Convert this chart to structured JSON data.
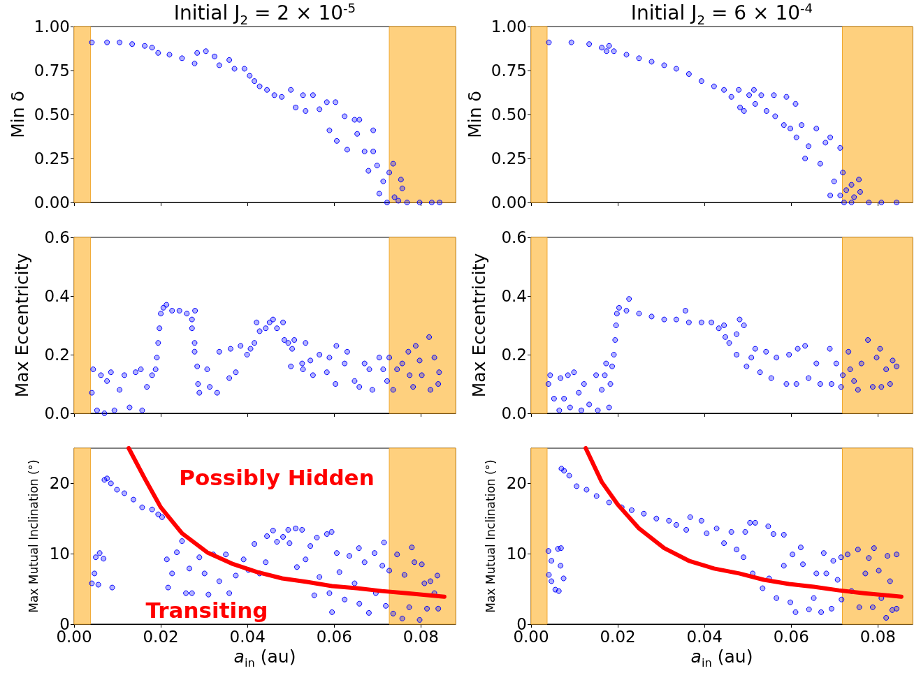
{
  "chart_data": [
    {
      "type": "scatter",
      "title": "Initial J$_{2}$ = 2 × 10$^{-5}$",
      "ylabel": "Min δ",
      "marker": "circle",
      "tick_labels": "y",
      "xlim": [
        0,
        0.088
      ],
      "xticks": [
        {
          "value": 0,
          "label": null
        },
        {
          "value": 0.02,
          "label": null
        },
        {
          "value": 0.04,
          "label": null
        },
        {
          "value": 0.06,
          "label": null
        },
        {
          "value": 0.08,
          "label": null
        }
      ],
      "ylim": [
        0,
        1
      ],
      "yticks": [
        {
          "value": 0,
          "label": "0.00"
        },
        {
          "value": 0.25,
          "label": "0.25"
        },
        {
          "value": 0.5,
          "label": "0.50"
        },
        {
          "value": 0.75,
          "label": "0.75"
        },
        {
          "value": 1,
          "label": "1.00"
        }
      ],
      "bands": [
        {
          "axis": "x",
          "from": 0,
          "to": 0.0038,
          "color": "#fed07e"
        },
        {
          "axis": "x",
          "from": 0.0727,
          "to": 0.088,
          "color": "#fed07e"
        }
      ],
      "series": [
        {
          "color": "#0000ff",
          "x": [
            0.0041,
            0.0076,
            0.0105,
            0.0134,
            0.0163,
            0.018,
            0.0194,
            0.022,
            0.0249,
            0.0278,
            0.0284,
            0.0304,
            0.0324,
            0.0335,
            0.0358,
            0.037,
            0.0393,
            0.0405,
            0.0416,
            0.0428,
            0.0445,
            0.0462,
            0.0479,
            0.05,
            0.0511,
            0.0528,
            0.0534,
            0.0551,
            0.0566,
            0.0583,
            0.0589,
            0.0603,
            0.0606,
            0.0624,
            0.063,
            0.0647,
            0.0653,
            0.0658,
            0.067,
            0.0679,
            0.069,
            0.069,
            0.0699,
            0.0704,
            0.0713,
            0.0722,
            0.0727,
            0.0736,
            0.0739,
            0.0748,
            0.0754,
            0.0757,
            0.0768,
            0.0797,
            0.0825,
            0.0843
          ],
          "values": [
            0.91,
            0.91,
            0.91,
            0.9,
            0.89,
            0.88,
            0.85,
            0.84,
            0.82,
            0.79,
            0.85,
            0.86,
            0.83,
            0.78,
            0.81,
            0.76,
            0.76,
            0.72,
            0.69,
            0.66,
            0.64,
            0.61,
            0.6,
            0.64,
            0.54,
            0.61,
            0.52,
            0.61,
            0.53,
            0.57,
            0.41,
            0.57,
            0.35,
            0.49,
            0.3,
            0.47,
            0.39,
            0.47,
            0.29,
            0.18,
            0.41,
            0.29,
            0.21,
            0.05,
            0.12,
            0,
            0.17,
            0.22,
            0.03,
            0.01,
            0.13,
            0.08,
            0,
            0,
            0,
            0
          ]
        }
      ]
    },
    {
      "type": "scatter",
      "title": "Initial J$_{2}$ = 6 × 10$^{-4}$",
      "ylabel": "Min δ",
      "marker": "circle",
      "tick_labels": "y",
      "xlim": [
        0,
        0.088
      ],
      "xticks": [
        {
          "value": 0,
          "label": null
        },
        {
          "value": 0.02,
          "label": null
        },
        {
          "value": 0.04,
          "label": null
        },
        {
          "value": 0.06,
          "label": null
        },
        {
          "value": 0.08,
          "label": null
        }
      ],
      "ylim": [
        0,
        1
      ],
      "yticks": [
        {
          "value": 0,
          "label": "0.00"
        },
        {
          "value": 0.25,
          "label": "0.25"
        },
        {
          "value": 0.5,
          "label": "0.50"
        },
        {
          "value": 0.75,
          "label": "0.75"
        },
        {
          "value": 1,
          "label": "1.00"
        }
      ],
      "bands": [
        {
          "axis": "x",
          "from": 0,
          "to": 0.0037,
          "color": "#fed07e"
        },
        {
          "axis": "x",
          "from": 0.0718,
          "to": 0.088,
          "color": "#fed07e"
        }
      ],
      "series": [
        {
          "color": "#0000ff",
          "x": [
            0.0041,
            0.0093,
            0.0134,
            0.0163,
            0.018,
            0.0174,
            0.0191,
            0.022,
            0.0249,
            0.0278,
            0.0307,
            0.0335,
            0.0364,
            0.0393,
            0.0422,
            0.0445,
            0.0462,
            0.0479,
            0.0482,
            0.0491,
            0.0503,
            0.0514,
            0.0517,
            0.0531,
            0.0543,
            0.056,
            0.0563,
            0.0583,
            0.0589,
            0.0598,
            0.061,
            0.0612,
            0.0624,
            0.0632,
            0.064,
            0.0658,
            0.0667,
            0.0679,
            0.069,
            0.069,
            0.0699,
            0.0713,
            0.0713,
            0.0719,
            0.0727,
            0.0739,
            0.0745,
            0.0756,
            0.0759,
            0.0722,
            0.0739,
            0.0779,
            0.0808,
            0.0843
          ],
          "values": [
            0.91,
            0.91,
            0.9,
            0.88,
            0.89,
            0.86,
            0.86,
            0.84,
            0.82,
            0.8,
            0.78,
            0.76,
            0.73,
            0.69,
            0.66,
            0.64,
            0.6,
            0.64,
            0.54,
            0.52,
            0.61,
            0.64,
            0.56,
            0.61,
            0.52,
            0.61,
            0.49,
            0.44,
            0.6,
            0.42,
            0.56,
            0.37,
            0.44,
            0.25,
            0.32,
            0.42,
            0.22,
            0.34,
            0.04,
            0.37,
            0.12,
            0.31,
            0.04,
            0.17,
            0.07,
            0.1,
            0.03,
            0.13,
            0.06,
            0,
            0,
            0,
            0,
            0
          ]
        }
      ]
    },
    {
      "type": "scatter",
      "ylabel": "Max Eccentricity",
      "marker": "circle",
      "tick_labels": "y",
      "xlim": [
        0,
        0.088
      ],
      "xticks": [
        {
          "value": 0,
          "label": null
        },
        {
          "value": 0.02,
          "label": null
        },
        {
          "value": 0.04,
          "label": null
        },
        {
          "value": 0.06,
          "label": null
        },
        {
          "value": 0.08,
          "label": null
        }
      ],
      "ylim": [
        0,
        0.6
      ],
      "yticks": [
        {
          "value": 0,
          "label": "0.0"
        },
        0.2,
        0.4,
        0.6
      ],
      "bands": [
        {
          "axis": "x",
          "from": 0,
          "to": 0.0038,
          "color": "#fed07e"
        },
        {
          "axis": "x",
          "from": 0.0727,
          "to": 0.088,
          "color": "#fed07e"
        }
      ],
      "series": [
        {
          "color": "#0000ff",
          "x": [
            0.0041,
            0.0044,
            0.0053,
            0.0062,
            0.007,
            0.0076,
            0.0085,
            0.0093,
            0.0105,
            0.0116,
            0.0128,
            0.0142,
            0.0154,
            0.0157,
            0.0168,
            0.018,
            0.0188,
            0.0191,
            0.0194,
            0.0197,
            0.02,
            0.0206,
            0.0213,
            0.0226,
            0.0243,
            0.026,
            0.0272,
            0.0279,
            0.0272,
            0.0278,
            0.0278,
            0.0284,
            0.0286,
            0.0289,
            0.0307,
            0.0313,
            0.033,
            0.0335,
            0.0358,
            0.0361,
            0.0373,
            0.0384,
            0.0399,
            0.0407,
            0.0416,
            0.0421,
            0.0428,
            0.0442,
            0.0451,
            0.0459,
            0.0468,
            0.0482,
            0.0485,
            0.0494,
            0.0503,
            0.0508,
            0.05,
            0.0526,
            0.0528,
            0.0534,
            0.0545,
            0.0551,
            0.0566,
            0.0583,
            0.0589,
            0.0605,
            0.0603,
            0.0624,
            0.063,
            0.0647,
            0.0658,
            0.067,
            0.0681,
            0.0688,
            0.0704,
            0.0713,
            0.0722,
            0.0727,
            0.0736,
            0.0745,
            0.0757,
            0.0771,
            0.0774,
            0.0782,
            0.0788,
            0.0797,
            0.0802,
            0.0819,
            0.0822,
            0.0831,
            0.084,
            0.0842
          ],
          "values": [
            0.07,
            0.15,
            0.01,
            0.13,
            0,
            0.11,
            0.14,
            0.01,
            0.08,
            0.13,
            0.02,
            0.14,
            0.15,
            0.01,
            0.09,
            0.13,
            0.15,
            0.19,
            0.24,
            0.29,
            0.34,
            0.36,
            0.37,
            0.35,
            0.35,
            0.34,
            0.32,
            0.35,
            0.29,
            0.24,
            0.21,
            0.16,
            0.1,
            0.07,
            0.15,
            0.09,
            0.07,
            0.21,
            0.12,
            0.22,
            0.14,
            0.23,
            0.2,
            0.22,
            0.24,
            0.31,
            0.28,
            0.29,
            0.31,
            0.32,
            0.29,
            0.31,
            0.25,
            0.24,
            0.22,
            0.25,
            0.16,
            0.17,
            0.15,
            0.24,
            0.18,
            0.13,
            0.2,
            0.14,
            0.19,
            0.23,
            0.1,
            0.17,
            0.21,
            0.11,
            0.09,
            0.17,
            0.15,
            0.08,
            0.19,
            0.15,
            0.11,
            0.19,
            0.08,
            0.15,
            0.17,
            0.21,
            0.13,
            0.09,
            0.23,
            0.18,
            0.13,
            0.26,
            0.08,
            0.19,
            0.1,
            0.14
          ]
        }
      ]
    },
    {
      "type": "scatter",
      "ylabel": "Max Eccentricity",
      "marker": "circle",
      "tick_labels": "y",
      "xlim": [
        0,
        0.088
      ],
      "xticks": [
        {
          "value": 0,
          "label": null
        },
        {
          "value": 0.02,
          "label": null
        },
        {
          "value": 0.04,
          "label": null
        },
        {
          "value": 0.06,
          "label": null
        },
        {
          "value": 0.08,
          "label": null
        }
      ],
      "ylim": [
        0,
        0.6
      ],
      "yticks": [
        {
          "value": 0,
          "label": "0.0"
        },
        0.2,
        0.4,
        0.6
      ],
      "bands": [
        {
          "axis": "x",
          "from": 0,
          "to": 0.0037,
          "color": "#fed07e"
        },
        {
          "axis": "x",
          "from": 0.0718,
          "to": 0.088,
          "color": "#fed07e"
        }
      ],
      "series": [
        {
          "color": "#0000ff",
          "x": [
            0.004,
            0.0044,
            0.0053,
            0.0065,
            0.0068,
            0.0076,
            0.0085,
            0.009,
            0.0099,
            0.011,
            0.0116,
            0.0122,
            0.0134,
            0.015,
            0.0154,
            0.0163,
            0.017,
            0.0173,
            0.018,
            0.0183,
            0.0187,
            0.0191,
            0.0194,
            0.0196,
            0.0198,
            0.0203,
            0.0226,
            0.022,
            0.0249,
            0.0278,
            0.0307,
            0.0335,
            0.0356,
            0.0364,
            0.0393,
            0.0416,
            0.0433,
            0.0445,
            0.0448,
            0.0457,
            0.0474,
            0.0481,
            0.0474,
            0.0491,
            0.0497,
            0.0508,
            0.0517,
            0.0528,
            0.0542,
            0.0554,
            0.0566,
            0.0589,
            0.0595,
            0.0612,
            0.0615,
            0.0632,
            0.064,
            0.0658,
            0.0667,
            0.0689,
            0.0693,
            0.0704,
            0.0715,
            0.0719,
            0.0732,
            0.0736,
            0.0745,
            0.0754,
            0.0762,
            0.0777,
            0.0788,
            0.0797,
            0.0805,
            0.0808,
            0.0819,
            0.0828,
            0.0834,
            0.0843
          ],
          "values": [
            0.1,
            0.13,
            0.05,
            0.01,
            0.12,
            0.05,
            0.13,
            0.02,
            0.14,
            0.07,
            0.01,
            0.1,
            0.03,
            0.13,
            0.01,
            0.08,
            0.13,
            0.17,
            0.02,
            0.1,
            0.16,
            0.2,
            0.25,
            0.3,
            0.34,
            0.36,
            0.39,
            0.35,
            0.34,
            0.33,
            0.32,
            0.32,
            0.35,
            0.31,
            0.31,
            0.31,
            0.29,
            0.3,
            0.26,
            0.24,
            0.27,
            0.32,
            0.2,
            0.3,
            0.16,
            0.19,
            0.22,
            0.14,
            0.21,
            0.12,
            0.19,
            0.1,
            0.2,
            0.1,
            0.22,
            0.23,
            0.12,
            0.17,
            0.1,
            0.22,
            0.1,
            0.17,
            0.09,
            0.13,
            0.21,
            0.15,
            0.11,
            0.08,
            0.17,
            0.25,
            0.09,
            0.19,
            0.22,
            0.09,
            0.15,
            0.1,
            0.18,
            0.16
          ]
        }
      ]
    },
    {
      "type": "scatter",
      "xlabel": "a$_{in}$ (au)",
      "ylabel": "Max Mutual Inclination (°)",
      "marker": "circle",
      "xlim": [
        0,
        0.088
      ],
      "xticks": [
        {
          "value": 0,
          "label": "0.00"
        },
        {
          "value": 0.02,
          "label": "0.02"
        },
        {
          "value": 0.04,
          "label": "0.04"
        },
        {
          "value": 0.06,
          "label": "0.06"
        },
        {
          "value": 0.08,
          "label": "0.08"
        }
      ],
      "ylim": [
        0,
        25
      ],
      "yticks": [
        0,
        10,
        20
      ],
      "bands": [
        {
          "axis": "x",
          "from": 0,
          "to": 0.0038,
          "color": "#fed07e"
        },
        {
          "axis": "x",
          "from": 0.0727,
          "to": 0.088,
          "color": "#fed07e"
        }
      ],
      "annotations": [
        "Possibly Hidden",
        "Transiting"
      ],
      "series": [
        {
          "color": "#0000ff",
          "x": [
            0.0041,
            0.0047,
            0.0056,
            0.005,
            0.0059,
            0.0068,
            0.0088,
            0.007,
            0.0076,
            0.0085,
            0.0099,
            0.0116,
            0.0137,
            0.0157,
            0.018,
            0.0194,
            0.0203,
            0.0214,
            0.0217,
            0.0226,
            0.0237,
            0.0249,
            0.0258,
            0.0266,
            0.0272,
            0.0289,
            0.0301,
            0.031,
            0.0321,
            0.0335,
            0.035,
            0.0358,
            0.0373,
            0.0391,
            0.0402,
            0.0416,
            0.0428,
            0.0442,
            0.0445,
            0.0459,
            0.0468,
            0.0482,
            0.0494,
            0.0497,
            0.0511,
            0.0514,
            0.0526,
            0.0534,
            0.0545,
            0.0554,
            0.056,
            0.0566,
            0.0583,
            0.0589,
            0.0594,
            0.0595,
            0.0606,
            0.0612,
            0.0624,
            0.0635,
            0.0647,
            0.0657,
            0.0658,
            0.067,
            0.068,
            0.0693,
            0.0696,
            0.0711,
            0.0715,
            0.0719,
            0.0727,
            0.0736,
            0.0745,
            0.0757,
            0.0762,
            0.0773,
            0.0779,
            0.0785,
            0.0797,
            0.0802,
            0.0808,
            0.0814,
            0.0822,
            0.0831,
            0.0838,
            0.084
          ],
          "values": [
            5.8,
            7.2,
            5.6,
            9.5,
            10.1,
            9.3,
            5.2,
            20.5,
            20.7,
            20.0,
            19.1,
            18.6,
            17.7,
            16.6,
            16.3,
            15.6,
            15.2,
            9.2,
            5.2,
            7.2,
            10.2,
            11.8,
            4.4,
            7.9,
            4.4,
            9.5,
            7.2,
            4.2,
            9.9,
            6.1,
            9.9,
            4.4,
            6.9,
            9.2,
            7.7,
            11.4,
            7.2,
            8.8,
            12.5,
            13.3,
            11.7,
            12.4,
            13.4,
            11.5,
            13.6,
            8.1,
            13.4,
            9.2,
            11.1,
            4.1,
            12.3,
            6.7,
            12.8,
            4.4,
            13.1,
            1.7,
            10.1,
            7.4,
            3.5,
            9.7,
            5.8,
            10.8,
            2.9,
            8.8,
            1.6,
            10.1,
            4.4,
            8.3,
            11.6,
            2.6,
            7.6,
            1.5,
            9.9,
            0.8,
            7.0,
            2.4,
            10.9,
            8.8,
            0.6,
            8.5,
            5.8,
            2.2,
            6.1,
            4.4,
            6.9,
            2.2
          ]
        },
        {
          "type": "line",
          "marker": "none",
          "color": "#ff0000",
          "x": [
            0.0126,
            0.0163,
            0.02,
            0.0249,
            0.0307,
            0.0364,
            0.0422,
            0.048,
            0.0537,
            0.0595,
            0.0652,
            0.071,
            0.0768,
            0.0854
          ],
          "values": [
            25,
            20.7,
            16.6,
            12.9,
            10.2,
            8.6,
            7.4,
            6.5,
            6.0,
            5.4,
            5.1,
            4.7,
            4.4,
            3.9
          ]
        }
      ]
    },
    {
      "type": "scatter",
      "xlabel": "a$_{in}$ (au)",
      "ylabel": "Max Mutual Inclination (°)",
      "marker": "circle",
      "xlim": [
        0,
        0.088
      ],
      "xticks": [
        {
          "value": 0,
          "label": "0.00"
        },
        {
          "value": 0.02,
          "label": "0.02"
        },
        {
          "value": 0.04,
          "label": "0.04"
        },
        {
          "value": 0.06,
          "label": "0.06"
        },
        {
          "value": 0.08,
          "label": "0.08"
        }
      ],
      "ylim": [
        0,
        25
      ],
      "yticks": [
        0,
        10,
        20
      ],
      "bands": [
        {
          "axis": "x",
          "from": 0,
          "to": 0.0037,
          "color": "#fed07e"
        },
        {
          "axis": "x",
          "from": 0.0718,
          "to": 0.088,
          "color": "#fed07e"
        }
      ],
      "series": [
        {
          "color": "#0000ff",
          "x": [
            0.004,
            0.0041,
            0.0047,
            0.0047,
            0.0056,
            0.0062,
            0.0064,
            0.0068,
            0.0069,
            0.0075,
            0.007,
            0.0076,
            0.0088,
            0.0105,
            0.0128,
            0.0151,
            0.018,
            0.0209,
            0.0232,
            0.026,
            0.0289,
            0.0318,
            0.0335,
            0.0367,
            0.0358,
            0.0393,
            0.0405,
            0.0428,
            0.0445,
            0.0462,
            0.0474,
            0.0494,
            0.049,
            0.0505,
            0.0511,
            0.0517,
            0.0534,
            0.0547,
            0.0549,
            0.0559,
            0.0566,
            0.0583,
            0.0583,
            0.0598,
            0.0603,
            0.061,
            0.0622,
            0.0627,
            0.0641,
            0.0652,
            0.0658,
            0.0669,
            0.0675,
            0.0681,
            0.0693,
            0.0697,
            0.0707,
            0.0715,
            0.0716,
            0.073,
            0.0739,
            0.0754,
            0.0757,
            0.0771,
            0.0779,
            0.0788,
            0.0791,
            0.0802,
            0.0808,
            0.0819,
            0.0822,
            0.0828,
            0.0833,
            0.0843,
            0.0843
          ],
          "values": [
            10.4,
            7.0,
            9.0,
            6.1,
            4.9,
            10.7,
            4.7,
            8.3,
            10.8,
            6.5,
            22.1,
            21.8,
            21.1,
            19.6,
            19.1,
            18.2,
            17.3,
            16.6,
            16.2,
            15.7,
            15.0,
            14.7,
            14.1,
            15.2,
            13.4,
            14.7,
            12.9,
            13.6,
            11.5,
            13.1,
            10.6,
            13.1,
            9.5,
            14.4,
            7.2,
            14.4,
            5.1,
            13.9,
            6.5,
            12.8,
            3.7,
            12.7,
            8.3,
            3.1,
            9.9,
            1.7,
            10.9,
            8.5,
            2.1,
            3.7,
            7.2,
            1.7,
            10.1,
            7.2,
            2.2,
            9.0,
            6.3,
            9.5,
            3.5,
            9.9,
            4.7,
            10.6,
            2.4,
            7.2,
            9.4,
            2.4,
            10.8,
            7.6,
            3.7,
            0.9,
            9.7,
            6.1,
            2.0,
            9.9,
            2.2
          ]
        },
        {
          "type": "line",
          "marker": "none",
          "color": "#ff0000",
          "x": [
            0.0126,
            0.0163,
            0.02,
            0.0249,
            0.0307,
            0.0364,
            0.0422,
            0.048,
            0.0537,
            0.0595,
            0.0652,
            0.071,
            0.0768,
            0.0854
          ],
          "values": [
            25,
            20.2,
            17.0,
            13.6,
            10.8,
            9.0,
            7.9,
            7.2,
            6.3,
            5.7,
            5.3,
            4.8,
            4.4,
            3.9
          ]
        }
      ]
    }
  ]
}
